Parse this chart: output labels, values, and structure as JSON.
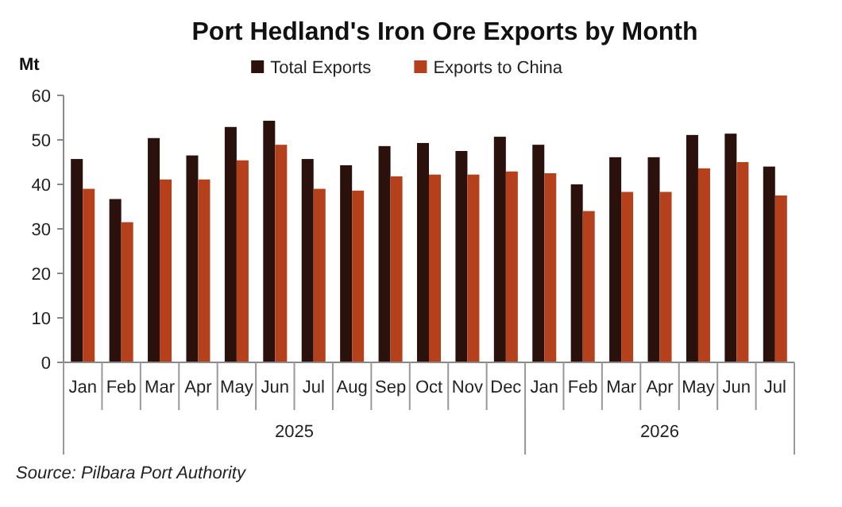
{
  "chart_data": {
    "type": "bar",
    "title": "Port Hedland's Iron Ore Exports by Month",
    "ylabel": "Mt",
    "categories": [
      "Jan",
      "Feb",
      "Mar",
      "Apr",
      "May",
      "Jun",
      "Jul",
      "Aug",
      "Sep",
      "Oct",
      "Nov",
      "Dec",
      "Jan",
      "Feb",
      "Mar",
      "Apr",
      "May",
      "Jun",
      "Jul"
    ],
    "series": [
      {
        "name": "Total Exports",
        "color": "#2b110c",
        "values": [
          45.7,
          36.7,
          50.4,
          46.5,
          52.9,
          54.3,
          45.7,
          44.3,
          48.6,
          49.3,
          47.5,
          50.7,
          48.9,
          40.0,
          46.1,
          46.1,
          51.1,
          51.4,
          44.0
        ]
      },
      {
        "name": "Exports to China",
        "color": "#b5401c",
        "values": [
          39.0,
          31.5,
          41.1,
          41.1,
          45.4,
          48.9,
          39.0,
          38.6,
          41.8,
          42.2,
          42.2,
          42.9,
          42.5,
          34.0,
          38.3,
          38.3,
          43.6,
          45.0,
          37.5
        ]
      }
    ],
    "ylim": [
      0,
      60
    ],
    "yticks": [
      0,
      10,
      20,
      30,
      40,
      50,
      60
    ],
    "grid": false,
    "legend": "top",
    "annotations": [
      "2025",
      "2026",
      "Source: Pilbara Port Authority"
    ]
  }
}
